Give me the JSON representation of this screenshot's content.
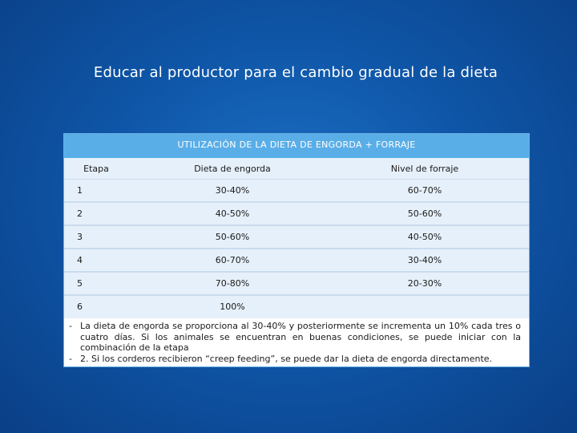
{
  "slide": {
    "title": "Educar al productor para el cambio gradual de la dieta"
  },
  "table": {
    "header": "UTILIZACIÓN DE LA DIETA DE ENGORDA + FORRAJE",
    "columns": [
      "Etapa",
      "Dieta de engorda",
      "Nivel de forraje"
    ],
    "rows": [
      [
        "1",
        "30-40%",
        "60-70%"
      ],
      [
        "2",
        "40-50%",
        "50-60%"
      ],
      [
        "3",
        "50-60%",
        "40-50%"
      ],
      [
        "4",
        "60-70%",
        "30-40%"
      ],
      [
        "5",
        "70-80%",
        "20-30%"
      ],
      [
        "6",
        "100%",
        ""
      ]
    ]
  },
  "notes": {
    "bullet": "-",
    "items": [
      "La dieta de engorda se proporciona al 30-40% y posteriormente se incrementa un 10% cada tres o cuatro días. Si los animales se encuentran en buenas condiciones, se puede iniciar con la combinación de la etapa",
      "2. Si los corderos recibieron “creep feeding”, se puede dar la dieta de engorda directamente."
    ]
  },
  "colors": {
    "background": "#0f56a8",
    "table_header": "#5aaee8",
    "row_alt": "#e6f0fa"
  }
}
